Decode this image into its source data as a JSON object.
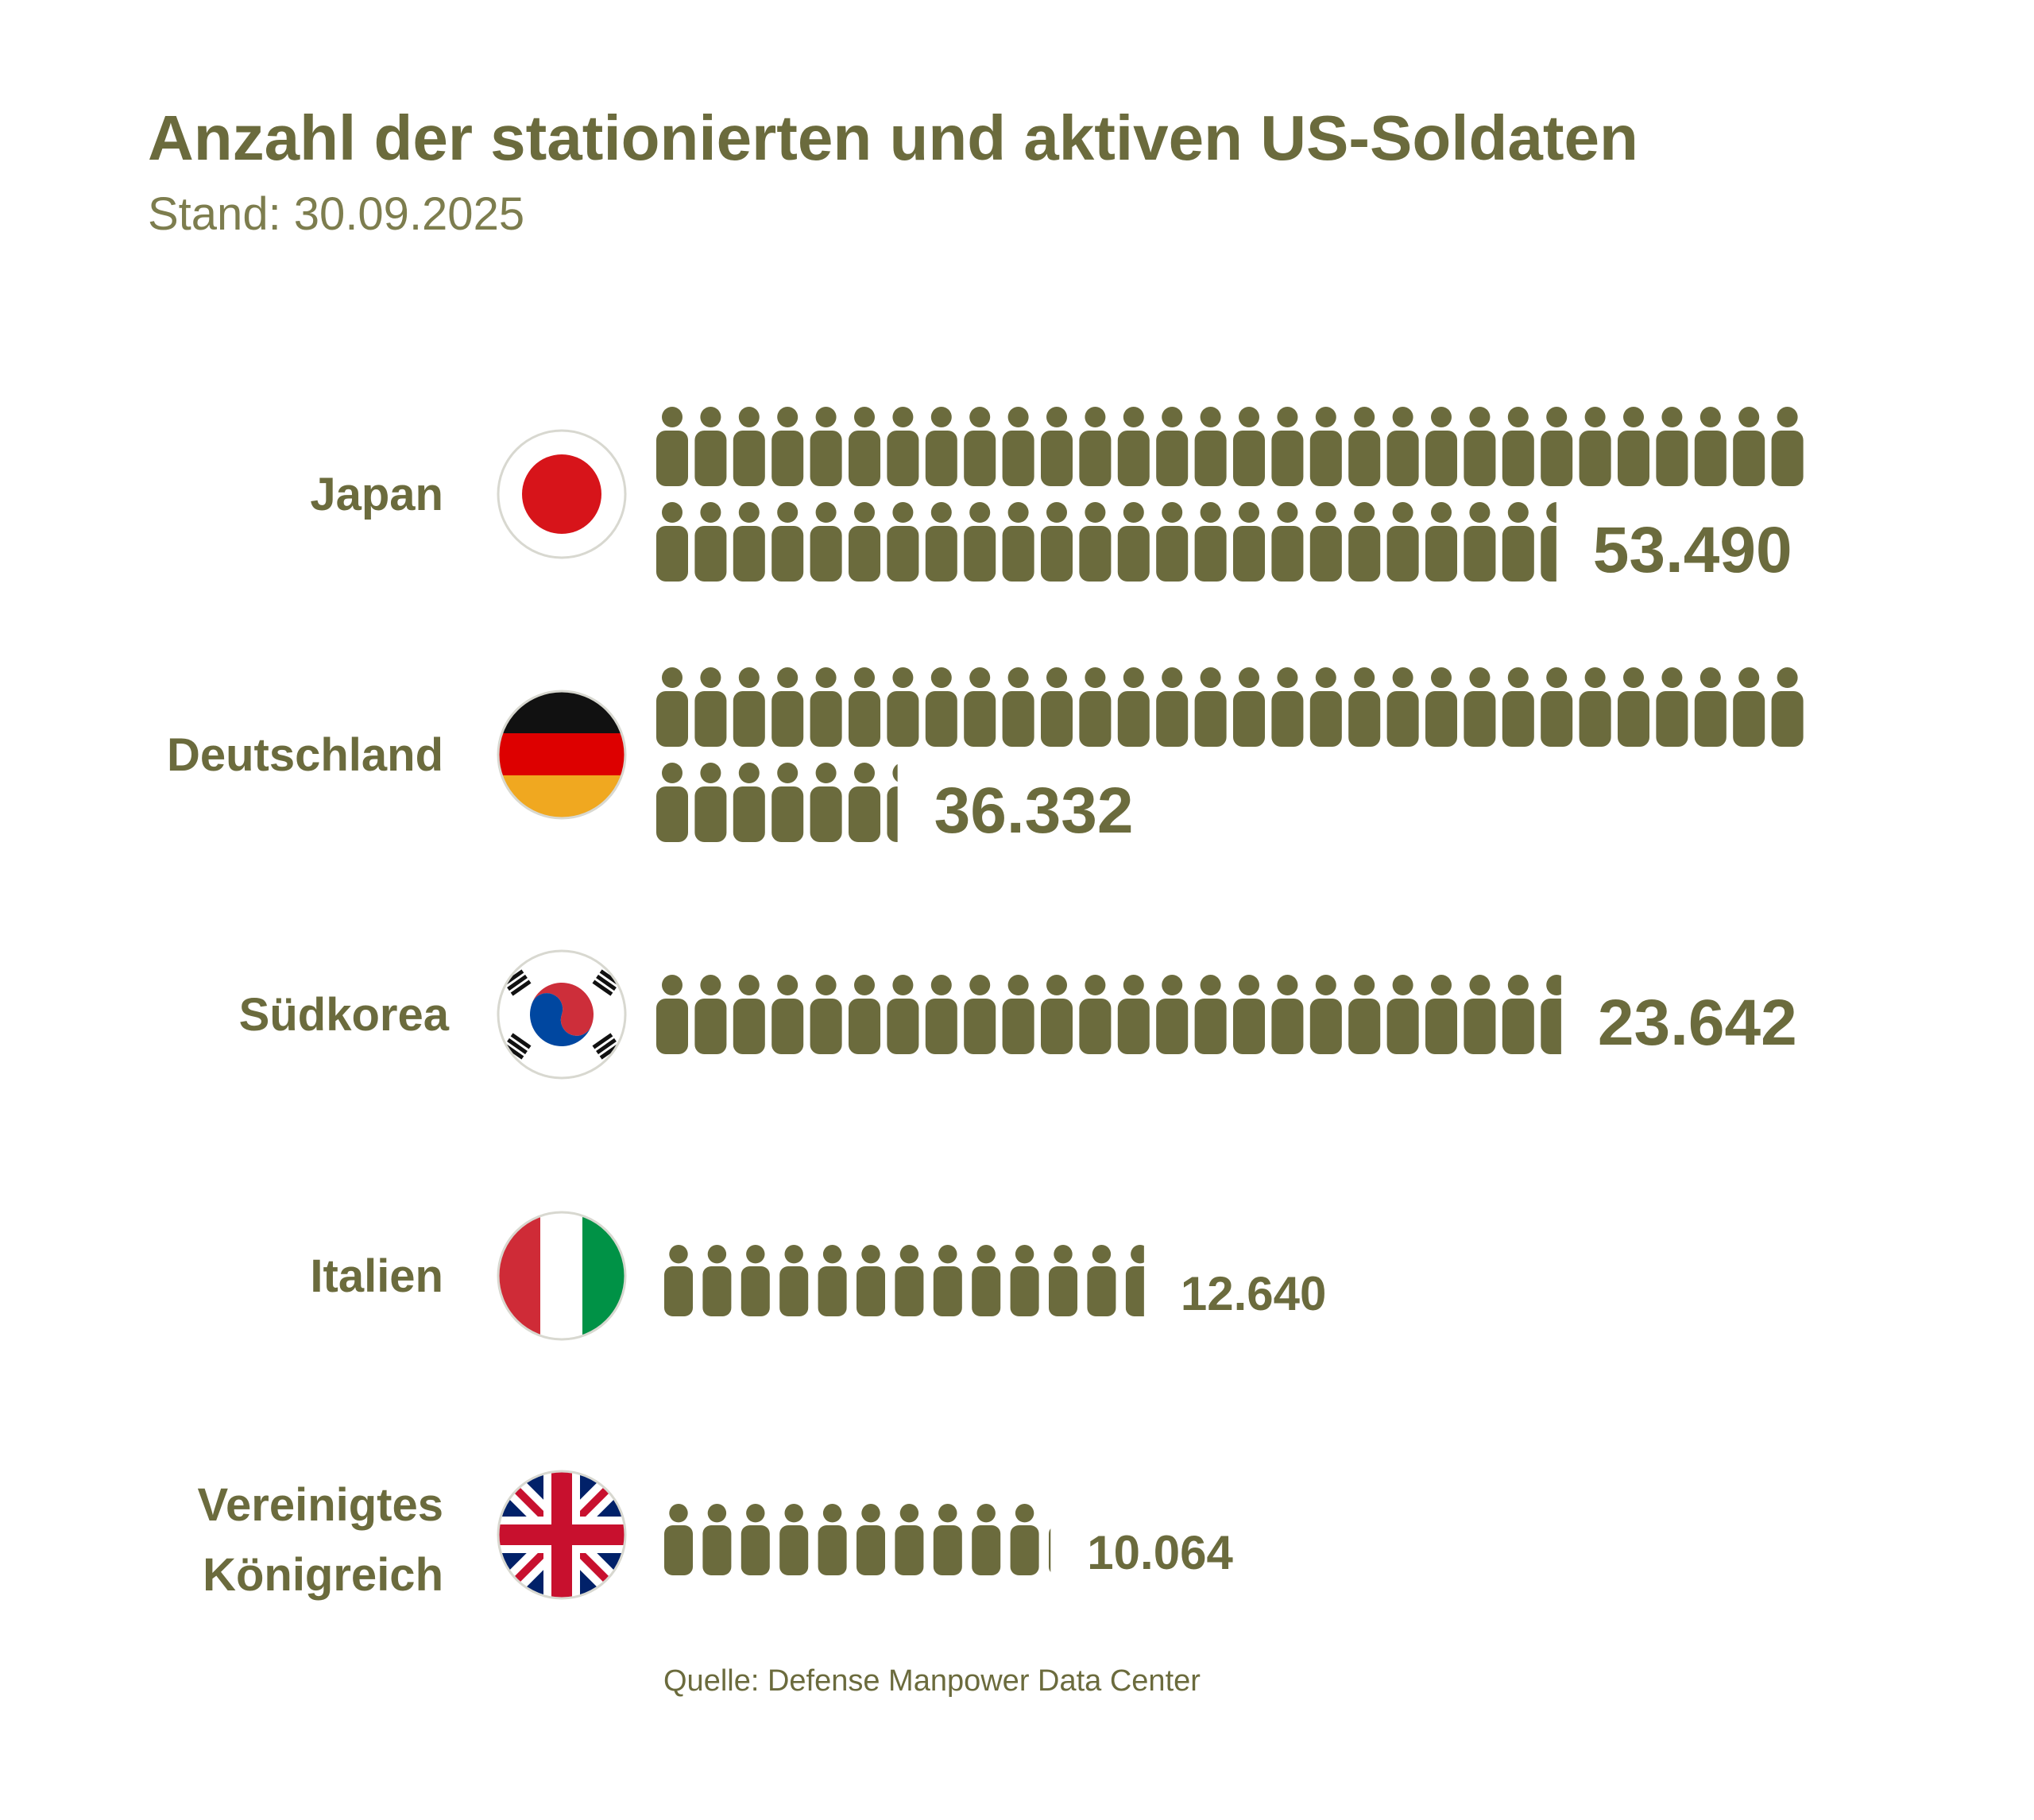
{
  "title": "Anzahl der stationierten und aktiven US-Soldaten",
  "subtitle": "Stand: 30.09.2025",
  "source": "Quelle: Defense Manpower Data Center",
  "colors": {
    "text": "#6b6b3d",
    "icon": "#6b6b3d",
    "subtitle": "#7d7d4e"
  },
  "chart_data": {
    "type": "bar",
    "title": "Anzahl der stationierten und aktiven US-Soldaten",
    "subtitle": "Stand: 30.09.2025",
    "categories": [
      "Japan",
      "Deutschland",
      "Südkorea",
      "Italien",
      "Vereinigtes Königreich"
    ],
    "values": [
      53490,
      36332,
      23642,
      12640,
      10064
    ],
    "value_labels": [
      "53.490",
      "36.332",
      "23.642",
      "12.640",
      "10.064"
    ],
    "flags": [
      "japan-flag-icon",
      "germany-flag-icon",
      "south-korea-flag-icon",
      "italy-flag-icon",
      "uk-flag-icon"
    ],
    "encoding": "pictogram rows of soldier figures"
  }
}
